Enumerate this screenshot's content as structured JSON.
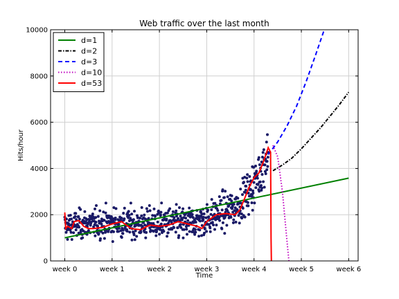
{
  "chart_data": {
    "type": "scatter",
    "title": "Web traffic over the last month",
    "xlabel": "Time",
    "ylabel": "Hits/hour",
    "xlim": [
      -0.3,
      6.2
    ],
    "ylim": [
      0,
      10000
    ],
    "x_ticks": [
      {
        "value": 0,
        "label": "week 0"
      },
      {
        "value": 1,
        "label": "week 1"
      },
      {
        "value": 2,
        "label": "week 2"
      },
      {
        "value": 3,
        "label": "week 3"
      },
      {
        "value": 4,
        "label": "week 4"
      },
      {
        "value": 5,
        "label": "week 5"
      },
      {
        "value": 6,
        "label": "week 6"
      }
    ],
    "y_ticks": [
      0,
      2000,
      4000,
      6000,
      8000,
      10000
    ],
    "grid": true,
    "legend_position": "top-left",
    "scatter_color": "#1a1a66",
    "scatter_summary": {
      "x_range": [
        0,
        4.3
      ],
      "approx_points": 743,
      "trend_knots": [
        [
          0.0,
          1500
        ],
        [
          0.5,
          1600
        ],
        [
          1.0,
          1650
        ],
        [
          1.5,
          1600
        ],
        [
          2.0,
          1650
        ],
        [
          2.5,
          1600
        ],
        [
          3.0,
          1800
        ],
        [
          3.3,
          2100
        ],
        [
          3.6,
          2300
        ],
        [
          3.9,
          3000
        ],
        [
          4.1,
          3700
        ],
        [
          4.3,
          4700
        ]
      ],
      "spread_knots": [
        [
          0,
          420
        ],
        [
          3.0,
          500
        ],
        [
          3.6,
          550
        ],
        [
          4.3,
          750
        ]
      ]
    },
    "series": [
      {
        "name": "d=1",
        "color": "#008000",
        "style": "solid",
        "x": [
          0,
          6
        ],
        "y": [
          1000,
          3580
        ]
      },
      {
        "name": "d=2",
        "color": "#000000",
        "style": "dashdot",
        "x": [
          4.4,
          4.6,
          4.8,
          5.0,
          5.2,
          5.4,
          5.6,
          5.8,
          6.0
        ],
        "y": [
          3900,
          4150,
          4450,
          4850,
          5300,
          5750,
          6250,
          6750,
          7300
        ]
      },
      {
        "name": "d=3",
        "color": "#0000ff",
        "style": "dashed",
        "x": [
          4.3,
          4.5,
          4.7,
          4.9,
          5.1,
          5.3,
          5.5
        ],
        "y": [
          4600,
          5150,
          5850,
          6700,
          7750,
          8900,
          10100
        ]
      },
      {
        "name": "d=10",
        "color": "#bf00bf",
        "style": "dotted",
        "x": [
          4.4,
          4.5,
          4.6,
          4.7,
          4.75
        ],
        "y": [
          5000,
          4500,
          3000,
          800,
          -300
        ]
      },
      {
        "name": "d=53",
        "color": "#ff0000",
        "style": "solid",
        "x": [
          0.0,
          0.02,
          0.06,
          0.15,
          0.2,
          0.3,
          0.4,
          0.5,
          0.6,
          0.8,
          1.0,
          1.2,
          1.4,
          1.6,
          1.8,
          2.0,
          2.2,
          2.4,
          2.6,
          2.8,
          2.9,
          3.0,
          3.2,
          3.4,
          3.6,
          3.7,
          3.8,
          3.9,
          4.0,
          4.1,
          4.2,
          4.3,
          4.35,
          4.36,
          4.37
        ],
        "y": [
          2100,
          1400,
          1500,
          1400,
          1700,
          1750,
          1500,
          1400,
          1400,
          1450,
          1600,
          1700,
          1400,
          1350,
          1550,
          1500,
          1550,
          1700,
          1600,
          1500,
          1400,
          1700,
          2000,
          2050,
          2000,
          2200,
          2700,
          3200,
          3600,
          3800,
          4300,
          4900,
          4700,
          1000,
          -500
        ]
      }
    ]
  }
}
